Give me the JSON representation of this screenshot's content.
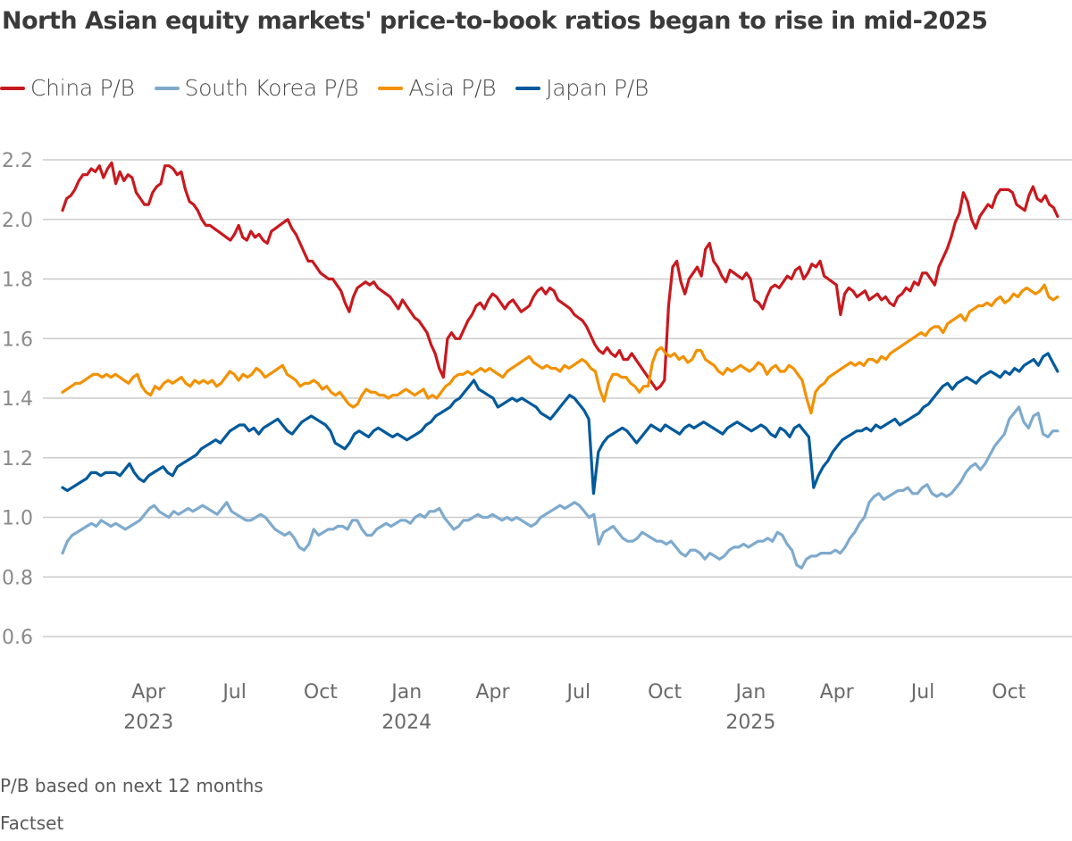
{
  "chart_data": {
    "type": "line",
    "title": "North Asian equity markets' price-to-book ratios began to rise in mid-2025",
    "note": "P/B based on next 12 months",
    "source": "Factset",
    "xlabel": "",
    "ylabel": "",
    "ylim": [
      0.6,
      2.2
    ],
    "yticks": [
      2.2,
      2.0,
      1.8,
      1.6,
      1.4,
      1.2,
      1.0,
      0.8,
      0.6
    ],
    "ytick_labels": [
      "2.2",
      "2.0",
      "1.8",
      "1.6",
      "1.4",
      "1.2",
      "1.0",
      "0.8",
      "0.6"
    ],
    "grid": true,
    "legend_position": "top-left",
    "x_range": [
      "2023-01",
      "2025-11"
    ],
    "x_month_start": 0.0,
    "x_month_end": 34.7,
    "xticks": [
      {
        "month": 3,
        "label": "Apr",
        "year": "2023"
      },
      {
        "month": 6,
        "label": "Jul",
        "year": ""
      },
      {
        "month": 9,
        "label": "Oct",
        "year": ""
      },
      {
        "month": 12,
        "label": "Jan",
        "year": "2024"
      },
      {
        "month": 15,
        "label": "Apr",
        "year": ""
      },
      {
        "month": 18,
        "label": "Jul",
        "year": ""
      },
      {
        "month": 21,
        "label": "Oct",
        "year": ""
      },
      {
        "month": 24,
        "label": "Jan",
        "year": "2025"
      },
      {
        "month": 27,
        "label": "Apr",
        "year": ""
      },
      {
        "month": 30,
        "label": "Jul",
        "year": ""
      },
      {
        "month": 33,
        "label": "Oct",
        "year": ""
      }
    ],
    "x_step_months": 0.25,
    "series": [
      {
        "name": "China P/B",
        "color": "#c8191e",
        "values": [
          2.03,
          2.07,
          2.08,
          2.1,
          2.13,
          2.15,
          2.15,
          2.17,
          2.16,
          2.18,
          2.14,
          2.17,
          2.19,
          2.12,
          2.16,
          2.13,
          2.15,
          2.14,
          2.09,
          2.07,
          2.05,
          2.05,
          2.09,
          2.11,
          2.12,
          2.18,
          2.18,
          2.17,
          2.15,
          2.16,
          2.1,
          2.06,
          2.05,
          2.03,
          2.0,
          1.98,
          1.98,
          1.97,
          1.96,
          1.95,
          1.94,
          1.93,
          1.95,
          1.98,
          1.94,
          1.93,
          1.96,
          1.94,
          1.95,
          1.93,
          1.92,
          1.96,
          1.97,
          1.98,
          1.99,
          2.0,
          1.97,
          1.95,
          1.92,
          1.89,
          1.86,
          1.86,
          1.84,
          1.82,
          1.81,
          1.8,
          1.8,
          1.78,
          1.76,
          1.72,
          1.69,
          1.74,
          1.77,
          1.78,
          1.79,
          1.78,
          1.79,
          1.77,
          1.76,
          1.75,
          1.74,
          1.72,
          1.7,
          1.73,
          1.71,
          1.69,
          1.67,
          1.66,
          1.64,
          1.62,
          1.58,
          1.55,
          1.5,
          1.47,
          1.6,
          1.62,
          1.6,
          1.6,
          1.63,
          1.66,
          1.68,
          1.71,
          1.72,
          1.7,
          1.73,
          1.75,
          1.74,
          1.72,
          1.7,
          1.72,
          1.73,
          1.71,
          1.69,
          1.7,
          1.71,
          1.74,
          1.76,
          1.77,
          1.75,
          1.77,
          1.76,
          1.73,
          1.72,
          1.71,
          1.7,
          1.68,
          1.67,
          1.66,
          1.64,
          1.61,
          1.58,
          1.56,
          1.55,
          1.57,
          1.55,
          1.54,
          1.56,
          1.53,
          1.53,
          1.55,
          1.53,
          1.51,
          1.49,
          1.47,
          1.45,
          1.43,
          1.44,
          1.46,
          1.71,
          1.84,
          1.86,
          1.79,
          1.75,
          1.8,
          1.82,
          1.84,
          1.81,
          1.9,
          1.92,
          1.86,
          1.84,
          1.81,
          1.79,
          1.83,
          1.82,
          1.81,
          1.8,
          1.82,
          1.8,
          1.73,
          1.72,
          1.7,
          1.74,
          1.77,
          1.78,
          1.77,
          1.79,
          1.81,
          1.8,
          1.83,
          1.84,
          1.8,
          1.82,
          1.85,
          1.84,
          1.86,
          1.81,
          1.8,
          1.79,
          1.78,
          1.68,
          1.75,
          1.77,
          1.76,
          1.74,
          1.75,
          1.76,
          1.73,
          1.74,
          1.75,
          1.73,
          1.74,
          1.72,
          1.71,
          1.74,
          1.75,
          1.77,
          1.76,
          1.79,
          1.78,
          1.82,
          1.82,
          1.8,
          1.78,
          1.84,
          1.87,
          1.9,
          1.94,
          1.99,
          2.02,
          2.09,
          2.06,
          2.0,
          1.97,
          2.01,
          2.03,
          2.05,
          2.04,
          2.08,
          2.1,
          2.1,
          2.1,
          2.09,
          2.05,
          2.04,
          2.03,
          2.08,
          2.11,
          2.07,
          2.06,
          2.08,
          2.05,
          2.04,
          2.01
        ]
      },
      {
        "name": "South Korea P/B",
        "color": "#7eaacd",
        "values": [
          0.88,
          0.92,
          0.94,
          0.95,
          0.96,
          0.97,
          0.98,
          0.97,
          0.99,
          0.98,
          0.97,
          0.98,
          0.97,
          0.96,
          0.97,
          0.98,
          0.99,
          1.01,
          1.03,
          1.04,
          1.02,
          1.01,
          1.0,
          1.02,
          1.01,
          1.02,
          1.03,
          1.02,
          1.03,
          1.04,
          1.03,
          1.02,
          1.01,
          1.03,
          1.05,
          1.02,
          1.01,
          1.0,
          0.99,
          0.99,
          1.0,
          1.01,
          1.0,
          0.98,
          0.96,
          0.95,
          0.94,
          0.95,
          0.93,
          0.9,
          0.89,
          0.91,
          0.96,
          0.94,
          0.95,
          0.96,
          0.96,
          0.97,
          0.97,
          0.96,
          0.99,
          0.99,
          0.96,
          0.94,
          0.94,
          0.96,
          0.97,
          0.98,
          0.97,
          0.98,
          0.99,
          0.99,
          0.98,
          1.0,
          1.01,
          1.0,
          1.02,
          1.02,
          1.03,
          1.0,
          0.98,
          0.96,
          0.97,
          0.99,
          0.99,
          1.0,
          1.01,
          1.0,
          1.0,
          1.01,
          1.0,
          0.99,
          1.0,
          0.99,
          1.0,
          0.99,
          0.98,
          0.97,
          0.98,
          1.0,
          1.01,
          1.02,
          1.03,
          1.04,
          1.03,
          1.04,
          1.05,
          1.04,
          1.02,
          1.0,
          1.01,
          0.91,
          0.95,
          0.96,
          0.97,
          0.95,
          0.93,
          0.92,
          0.92,
          0.93,
          0.95,
          0.94,
          0.93,
          0.92,
          0.92,
          0.91,
          0.92,
          0.9,
          0.88,
          0.87,
          0.89,
          0.89,
          0.88,
          0.86,
          0.88,
          0.87,
          0.86,
          0.87,
          0.89,
          0.9,
          0.9,
          0.91,
          0.9,
          0.91,
          0.92,
          0.92,
          0.93,
          0.92,
          0.95,
          0.94,
          0.91,
          0.89,
          0.84,
          0.83,
          0.86,
          0.87,
          0.87,
          0.88,
          0.88,
          0.88,
          0.89,
          0.88,
          0.9,
          0.93,
          0.95,
          0.98,
          1.0,
          1.05,
          1.07,
          1.08,
          1.06,
          1.07,
          1.08,
          1.09,
          1.09,
          1.1,
          1.08,
          1.08,
          1.1,
          1.11,
          1.08,
          1.07,
          1.08,
          1.07,
          1.08,
          1.1,
          1.12,
          1.15,
          1.17,
          1.18,
          1.16,
          1.18,
          1.21,
          1.24,
          1.26,
          1.28,
          1.33,
          1.35,
          1.37,
          1.32,
          1.3,
          1.34,
          1.35,
          1.28,
          1.27,
          1.29,
          1.29
        ]
      },
      {
        "name": "Asia P/B",
        "color": "#f39100",
        "values": [
          1.42,
          1.43,
          1.44,
          1.45,
          1.45,
          1.46,
          1.47,
          1.48,
          1.48,
          1.47,
          1.48,
          1.47,
          1.48,
          1.47,
          1.46,
          1.45,
          1.47,
          1.48,
          1.44,
          1.42,
          1.41,
          1.44,
          1.43,
          1.45,
          1.46,
          1.45,
          1.46,
          1.47,
          1.45,
          1.44,
          1.46,
          1.45,
          1.46,
          1.45,
          1.46,
          1.44,
          1.45,
          1.47,
          1.49,
          1.48,
          1.46,
          1.48,
          1.47,
          1.48,
          1.5,
          1.49,
          1.47,
          1.48,
          1.49,
          1.5,
          1.51,
          1.48,
          1.47,
          1.46,
          1.44,
          1.45,
          1.45,
          1.46,
          1.45,
          1.43,
          1.44,
          1.42,
          1.41,
          1.42,
          1.4,
          1.38,
          1.37,
          1.38,
          1.41,
          1.43,
          1.42,
          1.42,
          1.41,
          1.41,
          1.4,
          1.41,
          1.41,
          1.42,
          1.43,
          1.42,
          1.41,
          1.42,
          1.43,
          1.4,
          1.41,
          1.4,
          1.42,
          1.44,
          1.45,
          1.47,
          1.48,
          1.48,
          1.49,
          1.48,
          1.49,
          1.5,
          1.49,
          1.5,
          1.49,
          1.48,
          1.47,
          1.49,
          1.5,
          1.51,
          1.52,
          1.53,
          1.54,
          1.52,
          1.51,
          1.5,
          1.51,
          1.5,
          1.5,
          1.49,
          1.51,
          1.5,
          1.51,
          1.52,
          1.53,
          1.52,
          1.5,
          1.49,
          1.43,
          1.39,
          1.45,
          1.48,
          1.48,
          1.47,
          1.47,
          1.45,
          1.44,
          1.42,
          1.44,
          1.44,
          1.52,
          1.56,
          1.57,
          1.55,
          1.54,
          1.55,
          1.53,
          1.54,
          1.52,
          1.53,
          1.56,
          1.56,
          1.53,
          1.52,
          1.51,
          1.49,
          1.48,
          1.5,
          1.49,
          1.5,
          1.51,
          1.5,
          1.49,
          1.5,
          1.52,
          1.51,
          1.48,
          1.5,
          1.51,
          1.49,
          1.49,
          1.51,
          1.5,
          1.48,
          1.46,
          1.4,
          1.35,
          1.42,
          1.44,
          1.45,
          1.47,
          1.48,
          1.49,
          1.5,
          1.51,
          1.52,
          1.51,
          1.52,
          1.51,
          1.53,
          1.53,
          1.52,
          1.54,
          1.53,
          1.55,
          1.56,
          1.57,
          1.58,
          1.59,
          1.6,
          1.61,
          1.62,
          1.61,
          1.63,
          1.64,
          1.64,
          1.62,
          1.65,
          1.66,
          1.67,
          1.68,
          1.66,
          1.69,
          1.7,
          1.71,
          1.71,
          1.72,
          1.71,
          1.73,
          1.74,
          1.72,
          1.73,
          1.75,
          1.74,
          1.76,
          1.77,
          1.76,
          1.75,
          1.76,
          1.78,
          1.74,
          1.73,
          1.74
        ]
      },
      {
        "name": "Japan P/B",
        "color": "#005a9c",
        "values": [
          1.1,
          1.09,
          1.1,
          1.11,
          1.12,
          1.13,
          1.15,
          1.15,
          1.14,
          1.15,
          1.15,
          1.15,
          1.14,
          1.16,
          1.18,
          1.15,
          1.13,
          1.12,
          1.14,
          1.15,
          1.16,
          1.17,
          1.15,
          1.14,
          1.17,
          1.18,
          1.19,
          1.2,
          1.21,
          1.23,
          1.24,
          1.25,
          1.26,
          1.25,
          1.27,
          1.29,
          1.3,
          1.31,
          1.31,
          1.29,
          1.3,
          1.28,
          1.3,
          1.31,
          1.32,
          1.33,
          1.31,
          1.29,
          1.28,
          1.3,
          1.32,
          1.33,
          1.34,
          1.33,
          1.32,
          1.31,
          1.29,
          1.25,
          1.24,
          1.23,
          1.25,
          1.28,
          1.29,
          1.28,
          1.27,
          1.29,
          1.3,
          1.29,
          1.28,
          1.27,
          1.28,
          1.27,
          1.26,
          1.27,
          1.28,
          1.29,
          1.31,
          1.32,
          1.34,
          1.35,
          1.36,
          1.37,
          1.39,
          1.4,
          1.42,
          1.44,
          1.46,
          1.43,
          1.42,
          1.41,
          1.4,
          1.37,
          1.38,
          1.39,
          1.4,
          1.39,
          1.4,
          1.39,
          1.38,
          1.37,
          1.35,
          1.34,
          1.33,
          1.35,
          1.37,
          1.39,
          1.41,
          1.4,
          1.38,
          1.36,
          1.33,
          1.08,
          1.22,
          1.25,
          1.27,
          1.28,
          1.29,
          1.3,
          1.29,
          1.27,
          1.25,
          1.27,
          1.29,
          1.31,
          1.3,
          1.29,
          1.31,
          1.3,
          1.29,
          1.28,
          1.3,
          1.31,
          1.3,
          1.31,
          1.32,
          1.31,
          1.3,
          1.29,
          1.28,
          1.3,
          1.31,
          1.32,
          1.31,
          1.3,
          1.29,
          1.3,
          1.31,
          1.3,
          1.28,
          1.27,
          1.3,
          1.29,
          1.27,
          1.3,
          1.31,
          1.29,
          1.27,
          1.1,
          1.14,
          1.17,
          1.19,
          1.22,
          1.24,
          1.26,
          1.27,
          1.28,
          1.29,
          1.29,
          1.3,
          1.29,
          1.31,
          1.3,
          1.31,
          1.32,
          1.33,
          1.31,
          1.32,
          1.33,
          1.34,
          1.35,
          1.37,
          1.38,
          1.4,
          1.42,
          1.44,
          1.45,
          1.43,
          1.45,
          1.46,
          1.47,
          1.46,
          1.45,
          1.47,
          1.48,
          1.49,
          1.48,
          1.47,
          1.49,
          1.48,
          1.5,
          1.49,
          1.51,
          1.52,
          1.53,
          1.51,
          1.54,
          1.55,
          1.52,
          1.49
        ]
      }
    ]
  }
}
